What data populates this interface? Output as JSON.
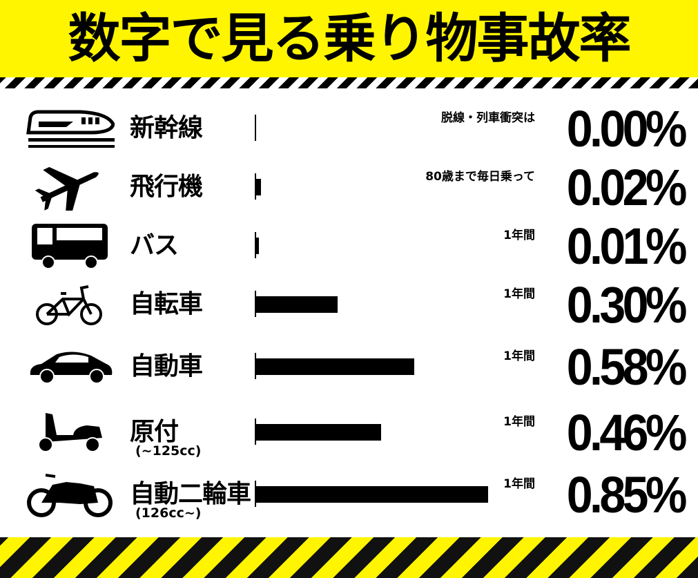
{
  "title": "数字で見る乗り物事故率",
  "colors": {
    "accent_yellow": "#fff500",
    "bar": "#000000"
  },
  "chart_data": {
    "type": "bar",
    "orientation": "horizontal",
    "title": "数字で見る乗り物事故率",
    "categories": [
      "新幹線",
      "飛行機",
      "バス",
      "自転車",
      "自動車",
      "原付",
      "自動二輪車"
    ],
    "sublabels": [
      "",
      "",
      "",
      "",
      "",
      "(~125cc)",
      "(126cc~)"
    ],
    "icons": [
      "bullet-train-icon",
      "airplane-icon",
      "bus-icon",
      "bicycle-icon",
      "car-icon",
      "scooter-icon",
      "motorcycle-icon"
    ],
    "notes": [
      "脱線・列車衝突は",
      "80歳まで毎日乗って",
      "1年間",
      "1年間",
      "1年間",
      "1年間",
      "1年間"
    ],
    "value_labels": [
      "0.00%",
      "0.02%",
      "0.01%",
      "0.30%",
      "0.58%",
      "0.46%",
      "0.85%"
    ],
    "values": [
      0.0,
      0.02,
      0.01,
      0.3,
      0.58,
      0.46,
      0.85
    ],
    "unit": "%"
  }
}
